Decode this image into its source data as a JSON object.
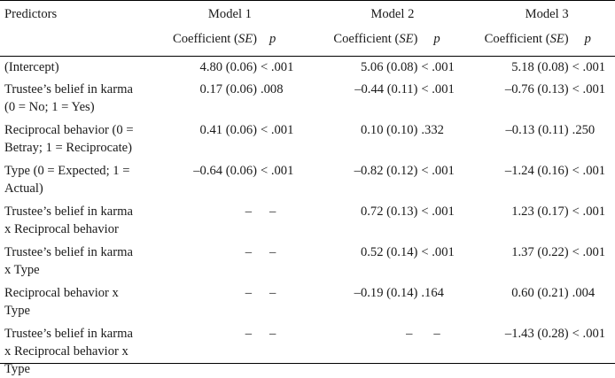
{
  "header": {
    "predictors": "Predictors",
    "models": [
      "Model 1",
      "Model 2",
      "Model 3"
    ],
    "coef_label": "Coefficient",
    "se_label": "SE",
    "p_label": "p"
  },
  "rows": [
    {
      "pred": [
        "(Intercept)"
      ],
      "m1c": "4.80 (0.06)",
      "m1p": "< .001",
      "m2c": "5.06 (0.08)",
      "m2p": "< .001",
      "m3c": "5.18 (0.08)",
      "m3p": "< .001"
    },
    {
      "pred": [
        "Trustee’s belief in karma",
        "(0 = No; 1 = Yes)"
      ],
      "m1c": "0.17 (0.06)",
      "m1p": ".008",
      "m2c": "–0.44 (0.11)",
      "m2p": "< .001",
      "m3c": "–0.76 (0.13)",
      "m3p": "< .001"
    },
    {
      "pred": [
        "Reciprocal behavior (0 =",
        "Betray; 1 = Reciprocate)"
      ],
      "m1c": "0.41 (0.06)",
      "m1p": "< .001",
      "m2c": "0.10 (0.10)",
      "m2p": ".332",
      "m3c": "–0.13 (0.11)",
      "m3p": ".250"
    },
    {
      "pred": [
        "Type (0 = Expected; 1 =",
        "Actual)"
      ],
      "m1c": "–0.64 (0.06)",
      "m1p": "< .001",
      "m2c": "–0.82 (0.12)",
      "m2p": "< .001",
      "m3c": "–1.24 (0.16)",
      "m3p": "< .001"
    },
    {
      "pred": [
        "Trustee’s belief in karma",
        "x Reciprocal behavior"
      ],
      "m1c": "–",
      "m1p": "–",
      "m2c": "0.72 (0.13)",
      "m2p": "< .001",
      "m3c": "1.23 (0.17)",
      "m3p": "< .001"
    },
    {
      "pred": [
        "Trustee’s belief in karma",
        "x Type"
      ],
      "m1c": "–",
      "m1p": "–",
      "m2c": "0.52 (0.14)",
      "m2p": "< .001",
      "m3c": "1.37 (0.22)",
      "m3p": "< .001"
    },
    {
      "pred": [
        "Reciprocal behavior x",
        "Type"
      ],
      "m1c": "–",
      "m1p": "–",
      "m2c": "–0.19 (0.14)",
      "m2p": ".164",
      "m3c": "0.60 (0.21)",
      "m3p": ".004"
    },
    {
      "pred": [
        "Trustee’s belief in karma",
        "x Reciprocal behavior x Type"
      ],
      "m1c": "–",
      "m1p": "–",
      "m2c": "–",
      "m2p": "–",
      "m3c": "–1.43 (0.28)",
      "m3p": "< .001"
    }
  ]
}
